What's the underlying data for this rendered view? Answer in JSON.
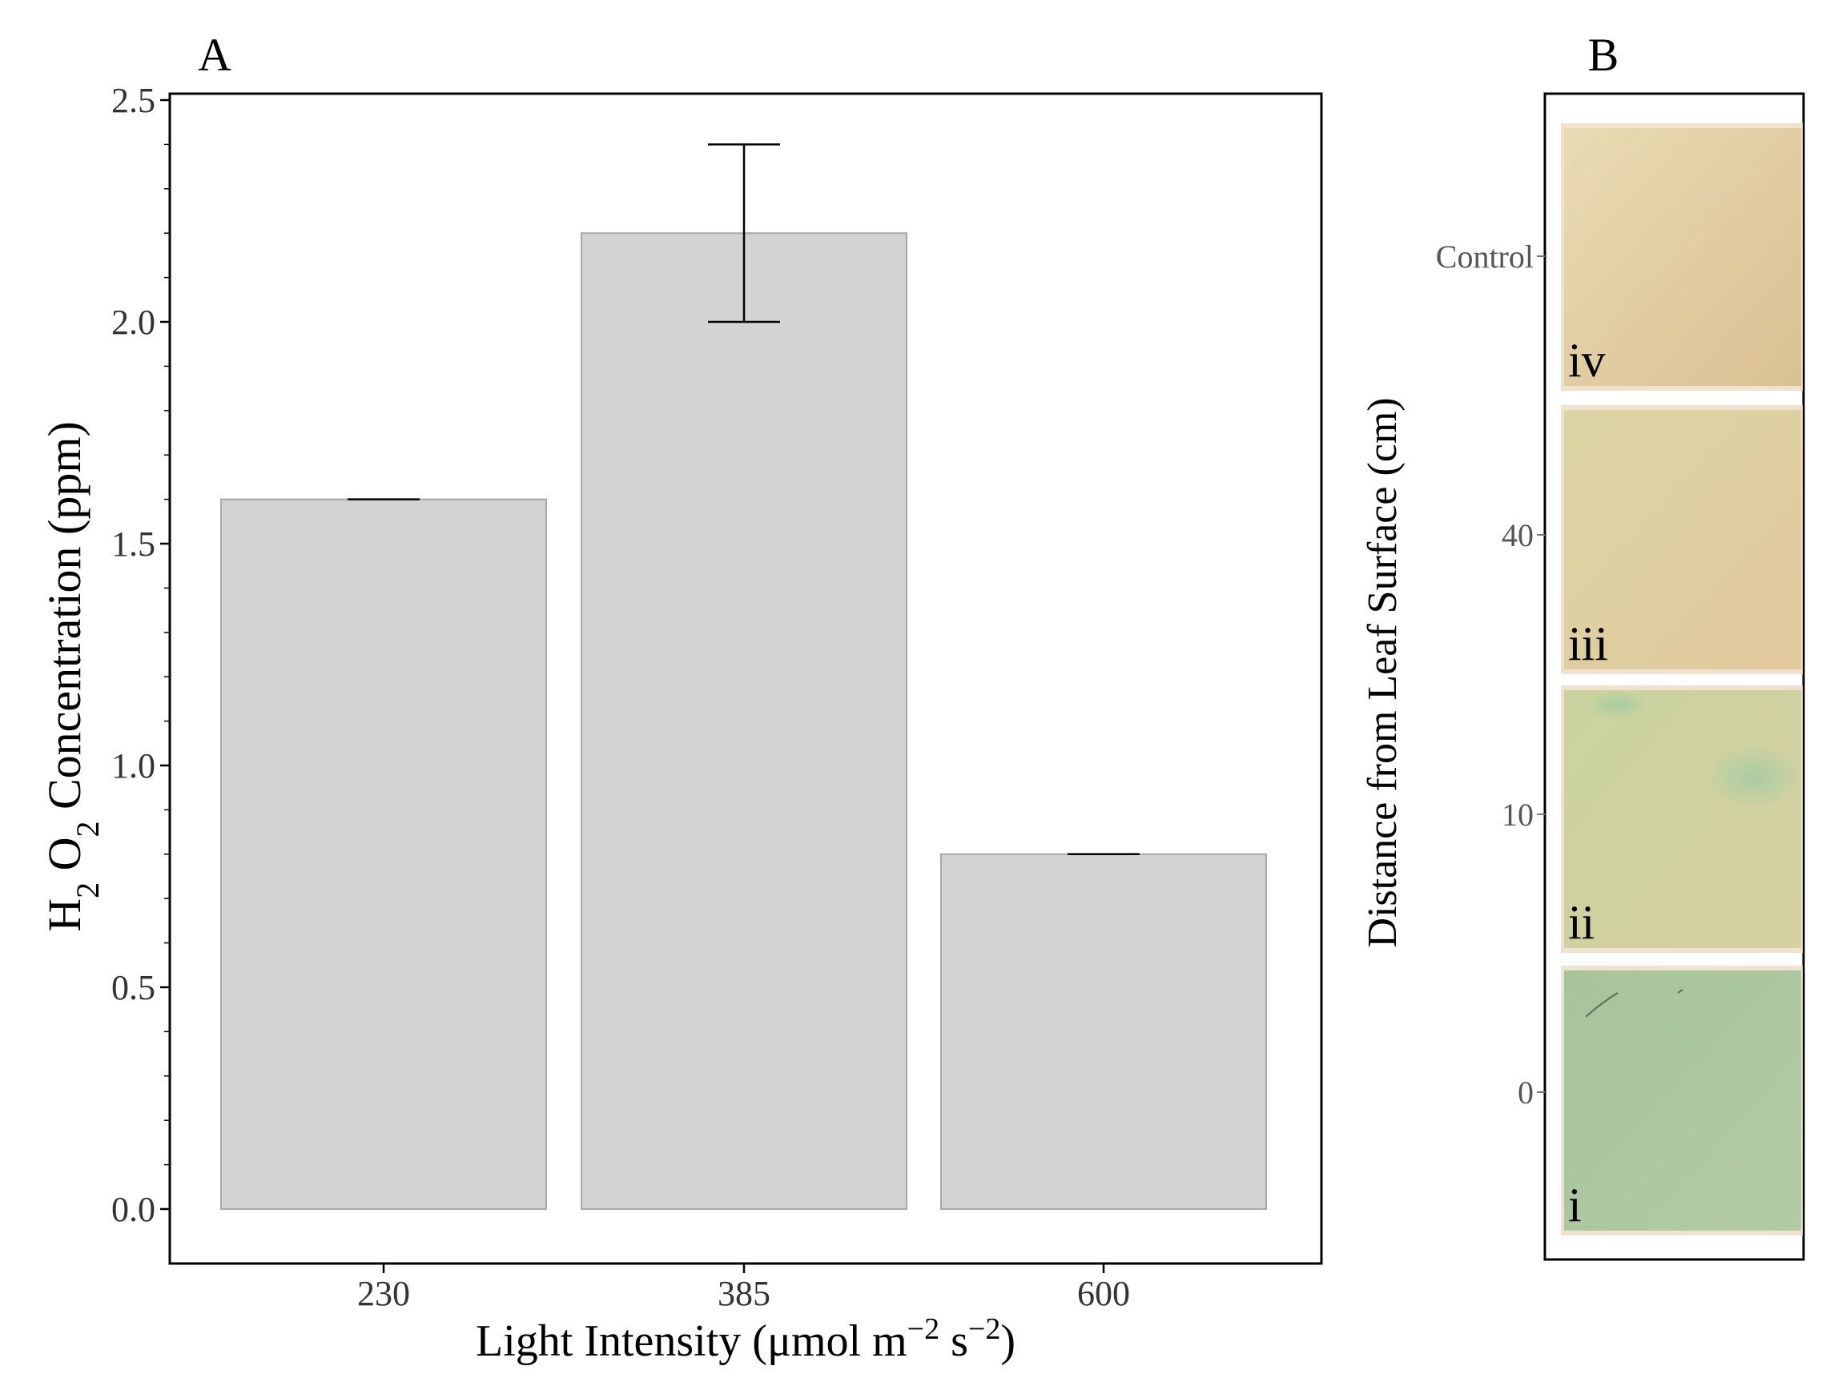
{
  "panel_a_label": "A",
  "panel_b_label": "B",
  "chart_data": [
    {
      "type": "bar",
      "panel": "A",
      "categories": [
        "230",
        "385",
        "600"
      ],
      "values": [
        1.6,
        2.2,
        0.8
      ],
      "error": [
        0.0,
        0.2,
        0.0
      ],
      "ylim": [
        0.0,
        2.5
      ],
      "yticks": [
        "0.0",
        "0.5",
        "1.0",
        "1.5",
        "2.0",
        "2.5"
      ],
      "ylabel_parts": [
        "H",
        "2",
        " O",
        "2",
        " Concentration (ppm)"
      ],
      "xlabel_parts": [
        "Light Intensity (μmol m",
        "−2",
        " s",
        "−2",
        ")"
      ],
      "bar_color": "#d3d3d3",
      "bar_edge": "#a8a8a8"
    },
    {
      "type": "image-strip",
      "panel": "B",
      "ylabel": "Distance from Leaf Surface (cm)",
      "yticks": [
        "0",
        "10",
        "40",
        "Control"
      ],
      "strips": [
        {
          "label": "iv",
          "color": "#e6d0a2"
        },
        {
          "label": "iii",
          "color": "#e3d3a3"
        },
        {
          "label": "ii",
          "color": "#cfd3a0"
        },
        {
          "label": "i",
          "color": "#aec99f"
        }
      ]
    }
  ]
}
